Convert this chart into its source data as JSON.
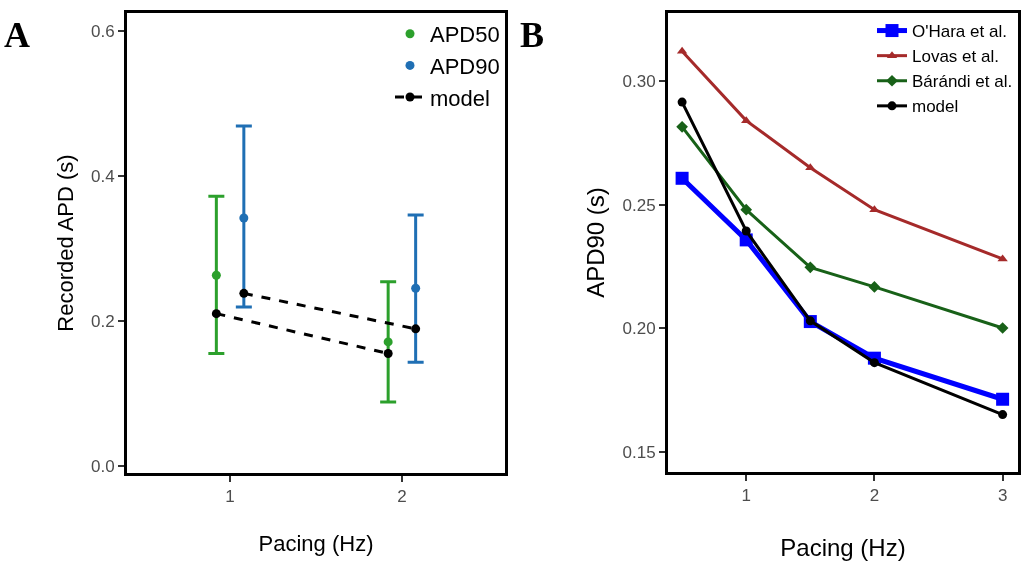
{
  "chart_data": [
    {
      "type": "scatter",
      "annotations": [
        "A"
      ],
      "xlabel": "Pacing (Hz)",
      "ylabel": "Recorded APD (s)",
      "xlim": [
        0.4,
        2.6
      ],
      "xticks": [
        1,
        2
      ],
      "ylim": [
        -0.01,
        0.625
      ],
      "yticks": [
        {
          "value": 0,
          "label": "0.0"
        },
        {
          "value": 0.2,
          "label": "0.2"
        },
        {
          "value": 0.4,
          "label": "0.4"
        },
        {
          "value": 0.6,
          "label": "0.6"
        }
      ],
      "grid": false,
      "legend": "top right",
      "marker": "circle",
      "series": [
        {
          "name": "APD50",
          "color": "#2ca02c",
          "x": [
            0.92,
            1.92
          ],
          "values": [
            0.263,
            0.171
          ],
          "errors": [
            [
              0.155,
              0.372
            ],
            [
              0.088,
              0.254
            ]
          ]
        },
        {
          "name": "APD90",
          "color": "#1f6fb4",
          "x": [
            1.08,
            2.08
          ],
          "values": [
            0.342,
            0.245
          ],
          "errors": [
            [
              0.219,
              0.469
            ],
            [
              0.143,
              0.346
            ]
          ]
        },
        {
          "name": "model",
          "type": "line",
          "line_style": "dashed",
          "color": "#000000",
          "x": [
            0.92,
            1.92
          ],
          "values": [
            0.21,
            0.155
          ]
        },
        {
          "type": "line",
          "line_style": "dashed",
          "color": "#000000",
          "x": [
            1.08,
            2.08
          ],
          "values": [
            0.238,
            0.189
          ]
        }
      ]
    },
    {
      "type": "line",
      "annotations": [
        "B"
      ],
      "xlabel": "Pacing (Hz)",
      "ylabel": "APD90 (s)",
      "x": [
        0.5,
        1,
        1.5,
        2,
        3
      ],
      "xlim": [
        0.39,
        3.12
      ],
      "xticks": [
        1,
        2,
        3
      ],
      "ylim": [
        0.142,
        0.3275
      ],
      "yticks": [
        {
          "value": 0.15,
          "label": "0.15"
        },
        {
          "value": 0.2,
          "label": "0.20"
        },
        {
          "value": 0.25,
          "label": "0.25"
        },
        {
          "value": 0.3,
          "label": "0.30"
        }
      ],
      "grid": false,
      "legend": "top right",
      "series": [
        {
          "name": "O'Hara et al.",
          "color": "#0000ff",
          "marker": "square",
          "values": [
            0.2607,
            0.2358,
            0.2028,
            0.188,
            0.1714
          ]
        },
        {
          "name": "Lovas et al.",
          "color": "#a52a2a",
          "marker": "triangle",
          "values": [
            0.312,
            0.284,
            0.265,
            0.248,
            0.2281
          ]
        },
        {
          "name": "Bárándi et al.",
          "color": "#186118",
          "marker": "diamond",
          "values": [
            0.2815,
            0.248,
            0.2247,
            0.2168,
            0.2002
          ]
        },
        {
          "name": "model",
          "color": "#000000",
          "marker": "circle",
          "values": [
            0.2915,
            0.2394,
            0.2031,
            0.1862,
            0.1652
          ]
        }
      ]
    }
  ]
}
